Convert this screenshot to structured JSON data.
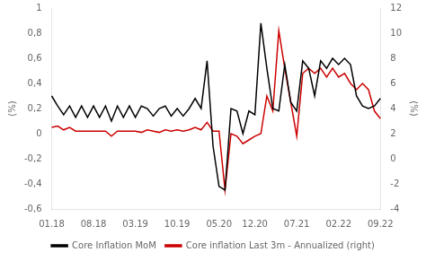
{
  "chart_data": {
    "type": "line",
    "categories": [
      "01.18",
      null,
      null,
      null,
      null,
      null,
      null,
      "08.18",
      null,
      null,
      null,
      null,
      null,
      null,
      "03.19",
      null,
      null,
      null,
      null,
      null,
      null,
      "10.19",
      null,
      null,
      null,
      null,
      null,
      null,
      "05.20",
      null,
      null,
      null,
      null,
      null,
      "12.20",
      null,
      null,
      null,
      null,
      null,
      null,
      "07.21",
      null,
      null,
      null,
      null,
      null,
      null,
      "02.22",
      null,
      null,
      null,
      null,
      null,
      null,
      "09.22"
    ],
    "ylabel": "(%)",
    "y2label": "(%)",
    "ylim": [
      -0.6,
      1.0
    ],
    "yticks": [
      {
        "value": -0.6,
        "label": "-0,6"
      },
      {
        "value": -0.4,
        "label": "-0,4"
      },
      {
        "value": -0.2,
        "label": "-0,2"
      },
      0,
      {
        "value": 0.2,
        "label": "0,2"
      },
      {
        "value": 0.4,
        "label": "0,4"
      },
      {
        "value": 0.6,
        "label": "0,6"
      },
      {
        "value": 0.8,
        "label": "0,8"
      },
      1
    ],
    "y2lim": [
      -4,
      12
    ],
    "y2ticks": [
      -4,
      -2,
      0,
      2,
      4,
      6,
      8,
      10,
      12
    ],
    "grid": false,
    "legend": "bottom",
    "series": [
      {
        "name": "Core Inflation MoM",
        "color": "#000000",
        "values": [
          0.3,
          0.22,
          0.15,
          0.22,
          0.13,
          0.22,
          0.13,
          0.22,
          0.13,
          0.22,
          0.1,
          0.22,
          0.13,
          0.22,
          0.13,
          0.22,
          0.2,
          0.14,
          0.2,
          0.22,
          0.14,
          0.2,
          0.14,
          0.2,
          0.28,
          0.2,
          0.58,
          -0.1,
          -0.42,
          -0.45,
          0.2,
          0.18,
          0.0,
          0.18,
          0.15,
          0.88,
          0.52,
          0.2,
          0.18,
          0.55,
          0.25,
          0.18,
          0.58,
          0.52,
          0.3,
          0.58,
          0.52,
          0.6,
          0.55,
          0.6,
          0.55,
          0.3,
          0.22,
          0.2,
          0.22,
          0.28
        ]
      },
      {
        "name": "Core inflation Last 3m - Annualized (right)",
        "color": "#cc0000",
        "axis": "y2",
        "values": [
          2.5,
          2.6,
          2.3,
          2.5,
          2.2,
          2.2,
          2.2,
          2.2,
          2.2,
          2.2,
          1.8,
          2.2,
          2.2,
          2.2,
          2.2,
          2.1,
          2.3,
          2.2,
          2.1,
          2.3,
          2.2,
          2.3,
          2.2,
          2.3,
          2.5,
          2.3,
          2.9,
          2.2,
          2.2,
          -2.5,
          2.0,
          1.8,
          1.2,
          1.5,
          1.8,
          2.0,
          5.0,
          3.8,
          10.2,
          7.2,
          4.5,
          1.8,
          6.8,
          7.2,
          6.8,
          7.2,
          6.5,
          7.2,
          6.5,
          6.8,
          6.0,
          5.5,
          6.0,
          5.5,
          3.8,
          3.2
        ]
      }
    ]
  }
}
